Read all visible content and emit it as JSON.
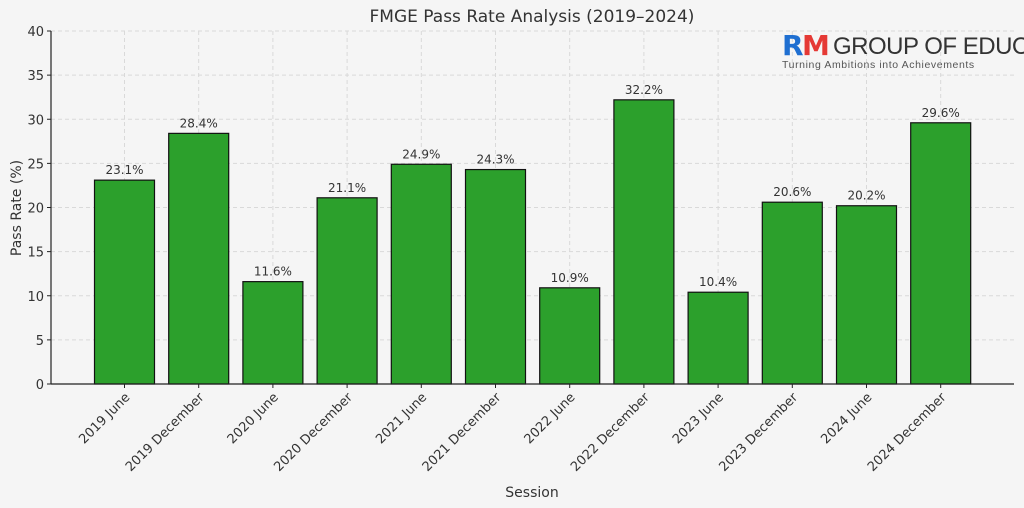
{
  "logo": {
    "letter_r": "R",
    "letter_m": "M",
    "brand_text": "GROUP OF EDUCATION",
    "tagline": "Turning Ambitions into Achievements",
    "color_r": "#1f6fd1",
    "color_m": "#e53935"
  },
  "chart_data": {
    "type": "bar",
    "title": "FMGE Pass Rate Analysis (2019–2024)",
    "xlabel": "Session",
    "ylabel": "Pass Rate (%)",
    "ylim": [
      0,
      40
    ],
    "yticks": [
      0,
      5,
      10,
      15,
      20,
      25,
      30,
      35,
      40
    ],
    "grid": true,
    "bar_color": "#2ca02c",
    "categories": [
      "2019 June",
      "2019 December",
      "2020 June",
      "2020 December",
      "2021 June",
      "2021 December",
      "2022 June",
      "2022 December",
      "2023 June",
      "2023 December",
      "2024 June",
      "2024 December"
    ],
    "values": [
      23.1,
      28.4,
      11.6,
      21.1,
      24.9,
      24.3,
      10.9,
      32.2,
      10.4,
      20.6,
      20.2,
      29.6
    ],
    "data_labels": [
      "23.1%",
      "28.4%",
      "11.6%",
      "21.1%",
      "24.9%",
      "24.3%",
      "10.9%",
      "32.2%",
      "10.4%",
      "20.6%",
      "20.2%",
      "29.6%"
    ]
  }
}
